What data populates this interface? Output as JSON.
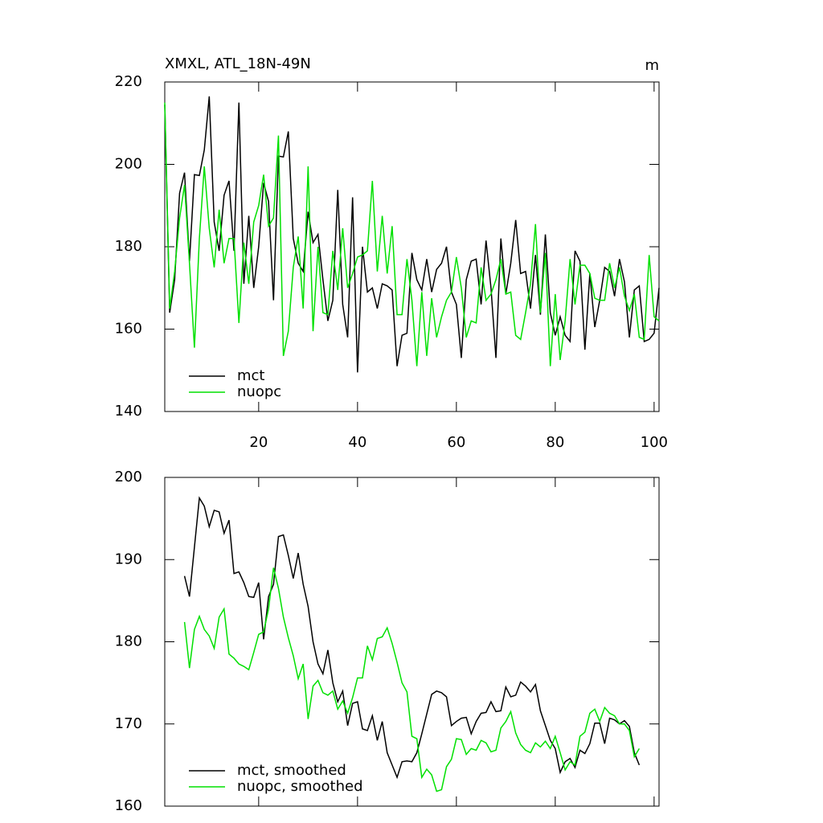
{
  "chart_data": [
    {
      "type": "line",
      "title": "XMXL, ATL_18N-49N",
      "units": "m",
      "x": [
        1,
        2,
        3,
        4,
        5,
        6,
        7,
        8,
        9,
        10,
        11,
        12,
        13,
        14,
        15,
        16,
        17,
        18,
        19,
        20,
        21,
        22,
        23,
        24,
        25,
        26,
        27,
        28,
        29,
        30,
        31,
        32,
        33,
        34,
        35,
        36,
        37,
        38,
        39,
        40,
        41,
        42,
        43,
        44,
        45,
        46,
        47,
        48,
        49,
        50,
        51,
        52,
        53,
        54,
        55,
        56,
        57,
        58,
        59,
        60,
        61,
        62,
        63,
        64,
        65,
        66,
        67,
        68,
        69,
        70,
        71,
        72,
        73,
        74,
        75,
        76,
        77,
        78,
        79,
        80,
        81,
        82,
        83,
        84,
        85,
        86,
        87,
        88,
        89,
        90,
        91,
        92,
        93,
        94,
        95,
        96,
        97,
        98,
        99,
        100,
        101
      ],
      "series": [
        {
          "name": "mct",
          "color": "#000000",
          "values": [
            214.5,
            164,
            172,
            193,
            198,
            176.5,
            197.5,
            197.3,
            203.5,
            216.5,
            186,
            179,
            192.5,
            196,
            179,
            215,
            171,
            187.5,
            170,
            180,
            195.5,
            191,
            167,
            202,
            201.8,
            208,
            182,
            176,
            174,
            188.5,
            181,
            183,
            172,
            162,
            167,
            193.8,
            166,
            158,
            192,
            149.5,
            180,
            169,
            170,
            165,
            171,
            170.5,
            169.5,
            151,
            158.5,
            159,
            178.5,
            172,
            169.5,
            177,
            169,
            174.5,
            176,
            180,
            169,
            166,
            153,
            172,
            176.5,
            177,
            166,
            181.5,
            170,
            153,
            182,
            168.5,
            176,
            186.5,
            173.5,
            174,
            165,
            178,
            163.5,
            183,
            164,
            158.5,
            163,
            158.5,
            157,
            179,
            176.5,
            155,
            173.5,
            160.5,
            167,
            175,
            174,
            168,
            177,
            171.5,
            158,
            169.5,
            170.5,
            157,
            157.5,
            159,
            170
          ]
        },
        {
          "name": "nuopc",
          "color": "#00e000",
          "values": [
            215,
            165,
            174,
            187,
            195,
            176,
            155.5,
            182,
            199.5,
            184.5,
            175,
            189,
            176,
            182,
            182,
            161.5,
            181,
            171,
            186,
            190,
            197.5,
            185,
            187,
            207,
            153.5,
            159.5,
            175,
            182.5,
            165,
            199.5,
            159.5,
            180,
            164,
            163.5,
            179,
            169.5,
            184.5,
            170,
            173.5,
            177.5,
            178,
            179,
            196,
            174,
            187.5,
            173.5,
            185,
            163.5,
            163.5,
            177,
            167,
            151,
            169,
            153.5,
            167.5,
            158,
            163,
            167,
            169,
            177.5,
            170,
            158,
            162,
            161.5,
            175,
            167,
            168.5,
            172,
            177,
            168.5,
            169,
            158.5,
            157.5,
            164,
            171,
            185.5,
            164,
            178.5,
            151,
            168.5,
            152.5,
            162,
            177,
            166,
            175.5,
            175.5,
            173.5,
            167.5,
            167,
            167,
            176,
            170,
            175,
            168,
            164.5,
            168.5,
            158,
            157.5,
            178,
            163,
            162
          ]
        }
      ],
      "xlim": [
        1,
        101
      ],
      "xticks": [
        20,
        40,
        60,
        80,
        100
      ],
      "show_xtick_labels": true,
      "ylim": [
        140,
        220
      ],
      "yticks": [
        140,
        160,
        180,
        200,
        220
      ],
      "legend": "lower left"
    },
    {
      "type": "line",
      "x": [
        5,
        6,
        7,
        8,
        9,
        10,
        11,
        12,
        13,
        14,
        15,
        16,
        17,
        18,
        19,
        20,
        21,
        22,
        23,
        24,
        25,
        26,
        27,
        28,
        29,
        30,
        31,
        32,
        33,
        34,
        35,
        36,
        37,
        38,
        39,
        40,
        41,
        42,
        43,
        44,
        45,
        46,
        47,
        48,
        49,
        50,
        51,
        52,
        53,
        54,
        55,
        56,
        57,
        58,
        59,
        60,
        61,
        62,
        63,
        64,
        65,
        66,
        67,
        68,
        69,
        70,
        71,
        72,
        73,
        74,
        75,
        76,
        77,
        78,
        79,
        80,
        81,
        82,
        83,
        84,
        85,
        86,
        87,
        88,
        89,
        90,
        91,
        92,
        93,
        94,
        95,
        96,
        97
      ],
      "series": [
        {
          "name": "mct, smoothed",
          "color": "#000000",
          "values": [
            188,
            185.5,
            191.5,
            197.5,
            196.5,
            194,
            196,
            195.8,
            193.2,
            194.8,
            188.3,
            188.5,
            187.2,
            185.5,
            185.4,
            187.2,
            180.3,
            185.5,
            187,
            192.8,
            193,
            190.5,
            187.7,
            190.8,
            187,
            184.3,
            180,
            177.3,
            176.1,
            179,
            175,
            172.7,
            174,
            169.8,
            172.5,
            172.7,
            169.4,
            169.2,
            171,
            168,
            170.3,
            166.5,
            165,
            163.5,
            165.4,
            165.5,
            165.4,
            166.5,
            168.8,
            171.2,
            173.6,
            174,
            173.8,
            173.3,
            169.8,
            170.3,
            170.7,
            170.8,
            168.8,
            170.3,
            171.3,
            171.4,
            172.7,
            171.5,
            171.6,
            174.5,
            173.3,
            173.5,
            175.1,
            174.6,
            173.9,
            174.8,
            171.6,
            169.8,
            168,
            167,
            164.1,
            165.4,
            165.8,
            164.7,
            166.8,
            166.4,
            167.6,
            170.1,
            170.1,
            167.6,
            170.7,
            170.5,
            170,
            170.4,
            169.7,
            166.5,
            165
          ]
        },
        {
          "name": "nuopc, smoothed",
          "color": "#00e000",
          "values": [
            182.4,
            176.8,
            181.5,
            183.1,
            181.5,
            180.7,
            179.2,
            183,
            184,
            178.5,
            178,
            177.3,
            177,
            176.6,
            178.7,
            180.9,
            181.2,
            184,
            189,
            186.5,
            183,
            180.5,
            178.3,
            175.5,
            177.3,
            170.6,
            174.6,
            175.3,
            173.8,
            173.5,
            174,
            171.8,
            172.8,
            171.3,
            173.2,
            175.6,
            175.6,
            179.5,
            177.8,
            180.4,
            180.6,
            181.7,
            179.8,
            177.5,
            175,
            173.9,
            168.5,
            168.2,
            163.5,
            164.5,
            163.8,
            161.8,
            162,
            164.8,
            165.7,
            168.2,
            168.1,
            166.3,
            167,
            166.8,
            168,
            167.7,
            166.6,
            166.8,
            169.5,
            170.3,
            171.5,
            168.9,
            167.5,
            166.8,
            166.5,
            167.7,
            167.2,
            167.9,
            167,
            168.5,
            166.5,
            164.4,
            165.4,
            165,
            168.5,
            169,
            171.3,
            171.8,
            170.3,
            172,
            171.3,
            171,
            170,
            170,
            169.2,
            166,
            167
          ]
        }
      ],
      "xlim": [
        1,
        101
      ],
      "xticks": [
        20,
        40,
        60,
        80,
        100
      ],
      "show_xtick_labels": false,
      "ylim": [
        160,
        200
      ],
      "yticks": [
        160,
        170,
        180,
        190,
        200
      ],
      "legend": "lower left"
    }
  ]
}
